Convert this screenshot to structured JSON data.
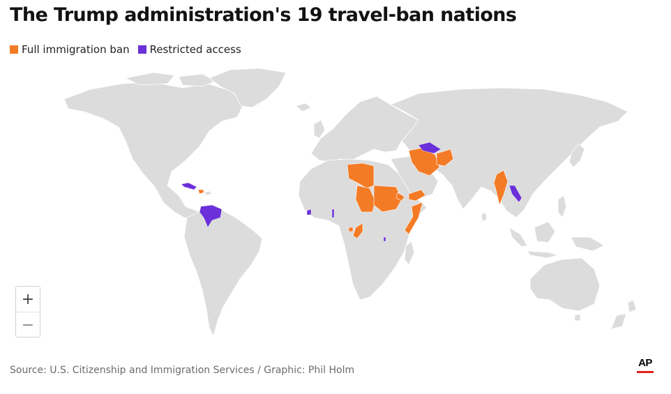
{
  "title": "The Trump administration's 19 travel-ban nations",
  "legend": [
    {
      "label": "Full immigration ban",
      "color": "#f47b26"
    },
    {
      "label": "Restricted access",
      "color": "#6b30d8"
    }
  ],
  "categories": {
    "full_immigration_ban": [
      "Afghanistan",
      "Myanmar",
      "Chad",
      "Republic of the Congo",
      "Equatorial Guinea",
      "Eritrea",
      "Haiti",
      "Iran",
      "Libya",
      "Somalia",
      "Sudan",
      "Yemen"
    ],
    "restricted_access": [
      "Burundi",
      "Cuba",
      "Laos",
      "Sierra Leone",
      "Togo",
      "Turkmenistan",
      "Venezuela"
    ]
  },
  "colors": {
    "land": "#dcdcdc",
    "background": "#ffffff"
  },
  "zoom": {
    "in_label": "+",
    "out_label": "−"
  },
  "source": "Source: U.S. Citizenship and Immigration Services / Graphic: Phil Holm",
  "logo": {
    "text": "AP",
    "accent": "#e2231a",
    "icon": "ap-logo"
  }
}
